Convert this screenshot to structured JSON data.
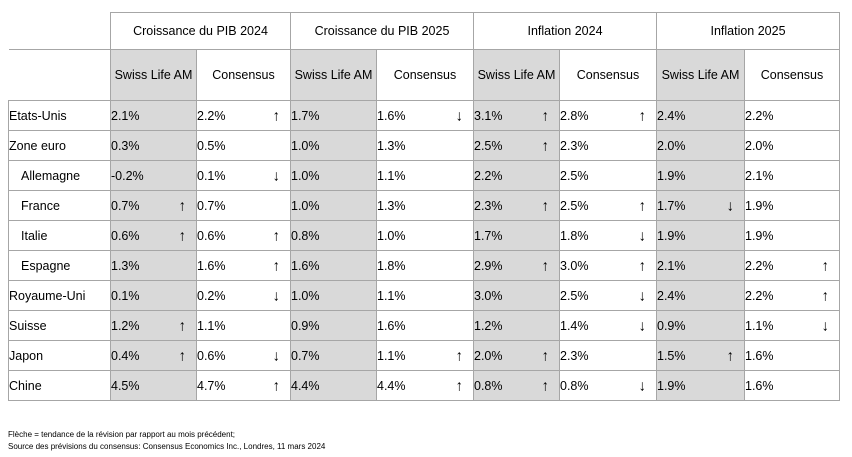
{
  "groups": [
    "Croissance du PIB 2024",
    "Croissance du PIB 2025",
    "Inflation 2024",
    "Inflation 2025"
  ],
  "subheaders": {
    "swisslife": "Swiss Life AM",
    "consensus": "Consensus"
  },
  "arrows": {
    "up": "↑",
    "down": "↓"
  },
  "rows": [
    {
      "country": "Etats-Unis",
      "indent": false,
      "cells": [
        {
          "v": "2.1%",
          "a": ""
        },
        {
          "v": "2.2%",
          "a": "up"
        },
        {
          "v": "1.7%",
          "a": ""
        },
        {
          "v": "1.6%",
          "a": "down"
        },
        {
          "v": "3.1%",
          "a": "up"
        },
        {
          "v": "2.8%",
          "a": "up"
        },
        {
          "v": "2.4%",
          "a": ""
        },
        {
          "v": "2.2%",
          "a": ""
        }
      ]
    },
    {
      "country": "Zone euro",
      "indent": false,
      "cells": [
        {
          "v": "0.3%",
          "a": ""
        },
        {
          "v": "0.5%",
          "a": ""
        },
        {
          "v": "1.0%",
          "a": ""
        },
        {
          "v": "1.3%",
          "a": ""
        },
        {
          "v": "2.5%",
          "a": "up"
        },
        {
          "v": "2.3%",
          "a": ""
        },
        {
          "v": "2.0%",
          "a": ""
        },
        {
          "v": "2.0%",
          "a": ""
        }
      ]
    },
    {
      "country": "Allemagne",
      "indent": true,
      "cells": [
        {
          "v": "-0.2%",
          "a": ""
        },
        {
          "v": "0.1%",
          "a": "down"
        },
        {
          "v": "1.0%",
          "a": ""
        },
        {
          "v": "1.1%",
          "a": ""
        },
        {
          "v": "2.2%",
          "a": ""
        },
        {
          "v": "2.5%",
          "a": ""
        },
        {
          "v": "1.9%",
          "a": ""
        },
        {
          "v": "2.1%",
          "a": ""
        }
      ]
    },
    {
      "country": "France",
      "indent": true,
      "cells": [
        {
          "v": "0.7%",
          "a": "up"
        },
        {
          "v": "0.7%",
          "a": ""
        },
        {
          "v": "1.0%",
          "a": ""
        },
        {
          "v": "1.3%",
          "a": ""
        },
        {
          "v": "2.3%",
          "a": "up"
        },
        {
          "v": "2.5%",
          "a": "up"
        },
        {
          "v": "1.7%",
          "a": "down"
        },
        {
          "v": "1.9%",
          "a": ""
        }
      ]
    },
    {
      "country": "Italie",
      "indent": true,
      "cells": [
        {
          "v": "0.6%",
          "a": "up"
        },
        {
          "v": "0.6%",
          "a": "up"
        },
        {
          "v": "0.8%",
          "a": ""
        },
        {
          "v": "1.0%",
          "a": ""
        },
        {
          "v": "1.7%",
          "a": ""
        },
        {
          "v": "1.8%",
          "a": "down"
        },
        {
          "v": "1.9%",
          "a": ""
        },
        {
          "v": "1.9%",
          "a": ""
        }
      ]
    },
    {
      "country": "Espagne",
      "indent": true,
      "cells": [
        {
          "v": "1.3%",
          "a": ""
        },
        {
          "v": "1.6%",
          "a": "up"
        },
        {
          "v": "1.6%",
          "a": ""
        },
        {
          "v": "1.8%",
          "a": ""
        },
        {
          "v": "2.9%",
          "a": "up"
        },
        {
          "v": "3.0%",
          "a": "up"
        },
        {
          "v": "2.1%",
          "a": ""
        },
        {
          "v": "2.2%",
          "a": "up"
        }
      ]
    },
    {
      "country": "Royaume-Uni",
      "indent": false,
      "cells": [
        {
          "v": "0.1%",
          "a": ""
        },
        {
          "v": "0.2%",
          "a": "down"
        },
        {
          "v": "1.0%",
          "a": ""
        },
        {
          "v": "1.1%",
          "a": ""
        },
        {
          "v": "3.0%",
          "a": ""
        },
        {
          "v": "2.5%",
          "a": "down"
        },
        {
          "v": "2.4%",
          "a": ""
        },
        {
          "v": "2.2%",
          "a": "up"
        }
      ]
    },
    {
      "country": "Suisse",
      "indent": false,
      "cells": [
        {
          "v": "1.2%",
          "a": "up"
        },
        {
          "v": "1.1%",
          "a": ""
        },
        {
          "v": "0.9%",
          "a": ""
        },
        {
          "v": "1.6%",
          "a": ""
        },
        {
          "v": "1.2%",
          "a": ""
        },
        {
          "v": "1.4%",
          "a": "down"
        },
        {
          "v": "0.9%",
          "a": ""
        },
        {
          "v": "1.1%",
          "a": "down"
        }
      ]
    },
    {
      "country": "Japon",
      "indent": false,
      "cells": [
        {
          "v": "0.4%",
          "a": "up"
        },
        {
          "v": "0.6%",
          "a": "down"
        },
        {
          "v": "0.7%",
          "a": ""
        },
        {
          "v": "1.1%",
          "a": "up"
        },
        {
          "v": "2.0%",
          "a": "up"
        },
        {
          "v": "2.3%",
          "a": ""
        },
        {
          "v": "1.5%",
          "a": "up"
        },
        {
          "v": "1.6%",
          "a": ""
        }
      ]
    },
    {
      "country": "Chine",
      "indent": false,
      "cells": [
        {
          "v": "4.5%",
          "a": ""
        },
        {
          "v": "4.7%",
          "a": "up"
        },
        {
          "v": "4.4%",
          "a": ""
        },
        {
          "v": "4.4%",
          "a": "up"
        },
        {
          "v": "0.8%",
          "a": "up"
        },
        {
          "v": "0.8%",
          "a": "down"
        },
        {
          "v": "1.9%",
          "a": ""
        },
        {
          "v": "1.6%",
          "a": ""
        }
      ]
    }
  ],
  "notes": [
    "Flèche = tendance de la révision par rapport au mois précédent;",
    "Source des prévisions du consensus: Consensus Economics Inc., Londres, 11 mars  2024"
  ]
}
